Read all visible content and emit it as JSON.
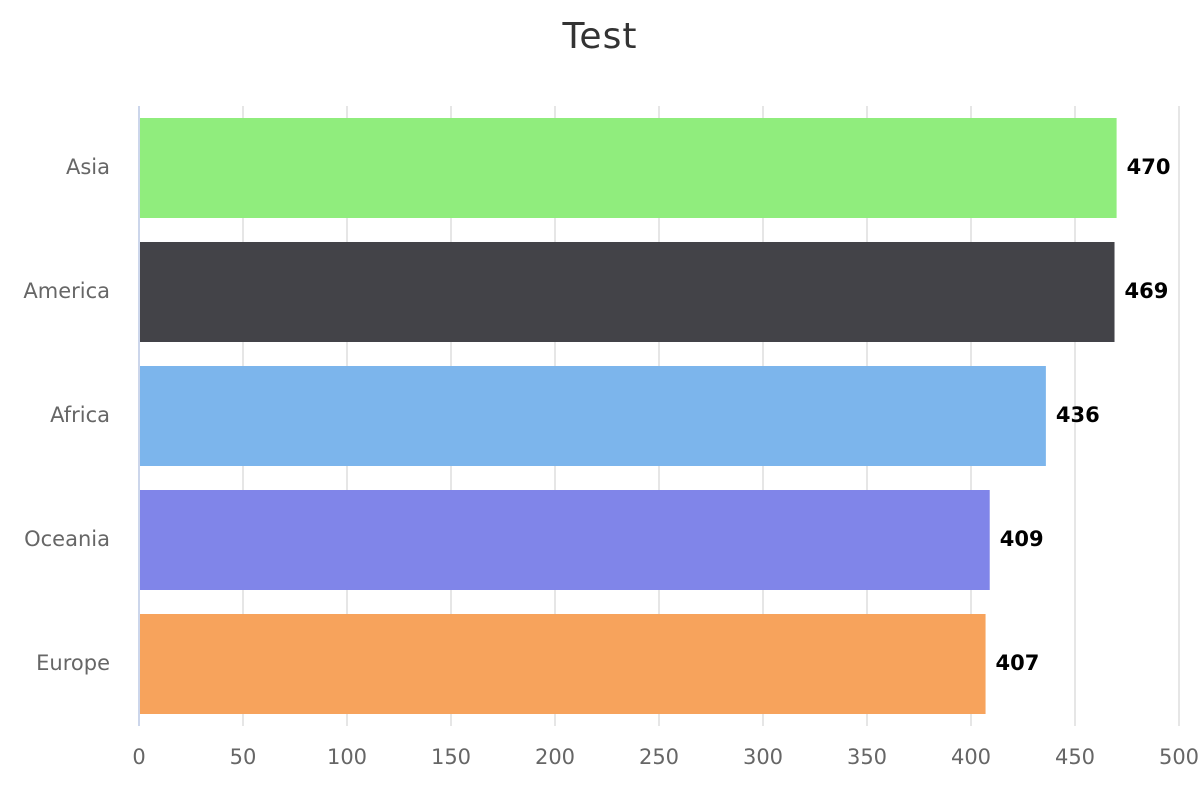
{
  "chart_data": {
    "type": "bar",
    "orientation": "horizontal",
    "title": "Test",
    "categories": [
      "Asia",
      "America",
      "Africa",
      "Oceania",
      "Europe"
    ],
    "values": [
      470,
      469,
      436,
      409,
      407
    ],
    "colors": [
      "#90ed7d",
      "#434348",
      "#7cb5ec",
      "#8085e9",
      "#f7a35c"
    ],
    "xlim": [
      0,
      500
    ],
    "xticks": [
      0,
      50,
      100,
      150,
      200,
      250,
      300,
      350,
      400,
      450,
      500
    ],
    "xlabel": "",
    "ylabel": "",
    "grid": true,
    "data_labels": true
  }
}
